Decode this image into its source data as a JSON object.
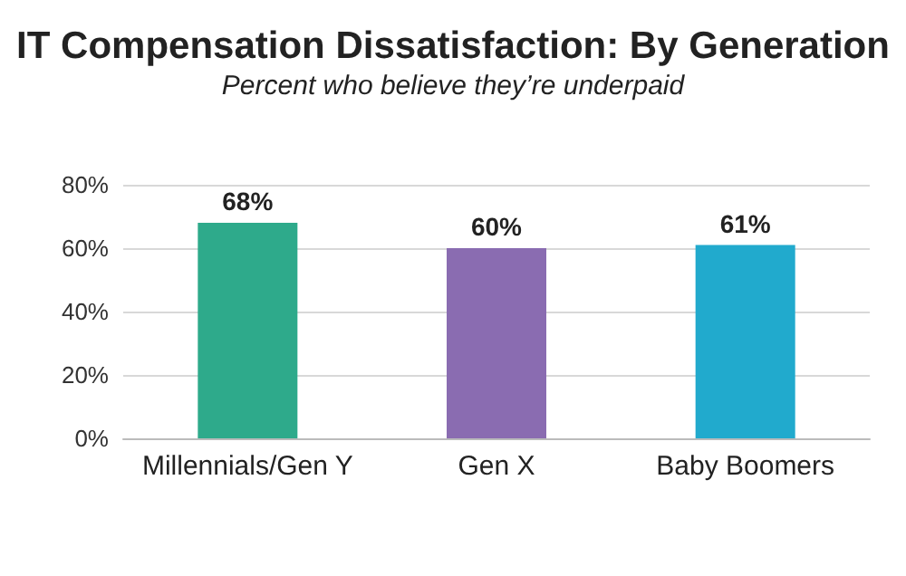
{
  "chart_data": {
    "type": "bar",
    "title": "IT Compensation Dissatisfaction: By Generation",
    "subtitle": "Percent who believe they’re underpaid",
    "categories": [
      "Millennials/Gen Y",
      "Gen X",
      "Baby Boomers"
    ],
    "values": [
      68,
      60,
      61
    ],
    "colors": [
      "#2eaa8b",
      "#8a6cb1",
      "#21aacd"
    ],
    "value_labels": [
      "68%",
      "60%",
      "61%"
    ],
    "ylim": [
      0,
      80
    ],
    "yticks": [
      {
        "value": 0,
        "label": "0%"
      },
      {
        "value": 20,
        "label": "20%"
      },
      {
        "value": 40,
        "label": "40%"
      },
      {
        "value": 60,
        "label": "60%"
      },
      {
        "value": 80,
        "label": "80%"
      }
    ],
    "grid": "y"
  }
}
